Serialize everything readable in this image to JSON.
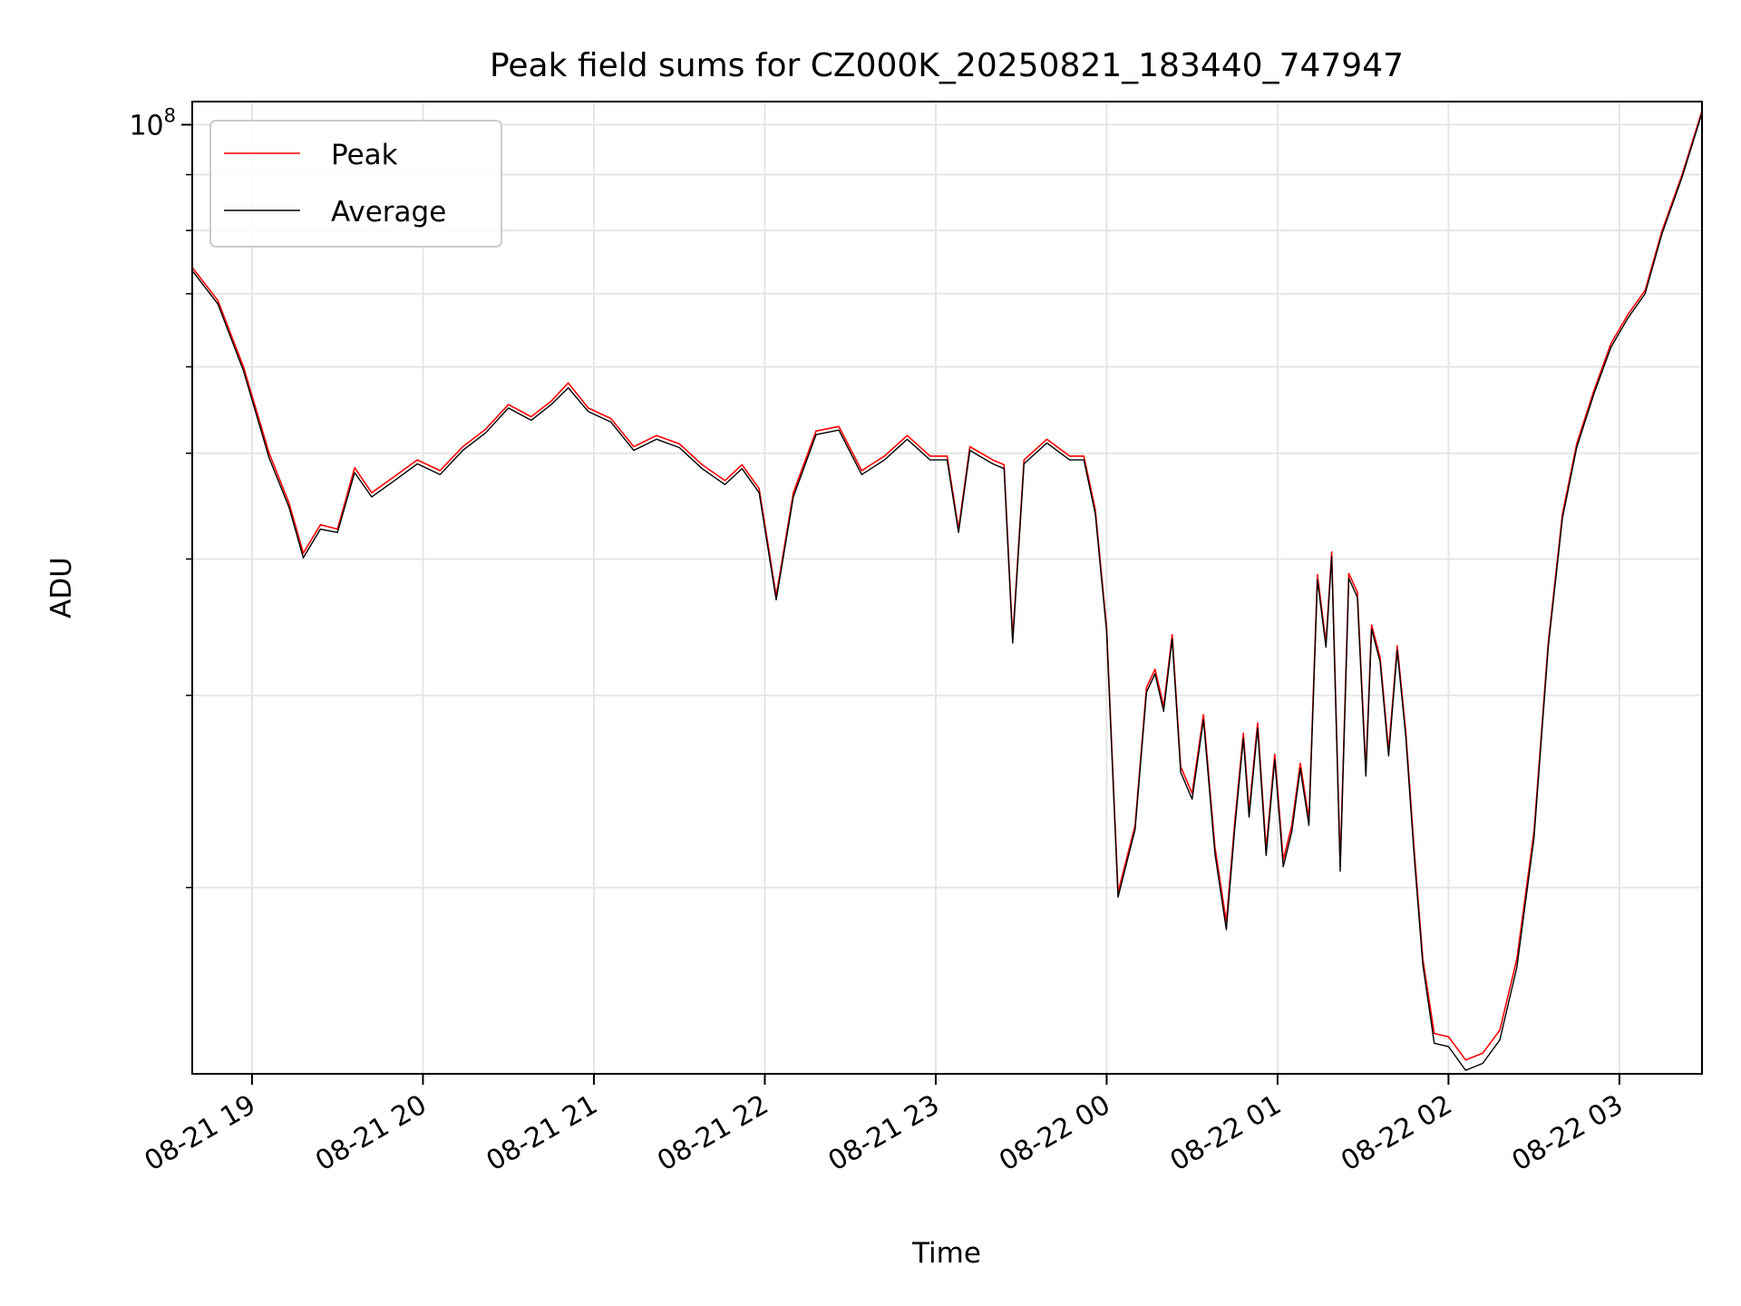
{
  "chart_data": {
    "type": "line",
    "title": "Peak field sums for CZ000K_20250821_183440_747947",
    "xlabel": "Time",
    "ylabel": "ADU",
    "y_scale": "log",
    "x_tick_labels": [
      "08-21 19",
      "08-21 20",
      "08-21 21",
      "08-21 22",
      "08-21 23",
      "08-22 00",
      "08-22 01",
      "08-22 02",
      "08-22 03"
    ],
    "x_ticks": [
      "2025-08-21 19:00",
      "2025-08-21 20:00",
      "2025-08-21 21:00",
      "2025-08-21 22:00",
      "2025-08-21 23:00",
      "2025-08-22 00:00",
      "2025-08-22 01:00",
      "2025-08-22 02:00",
      "2025-08-22 03:00"
    ],
    "xlim": [
      "2025-08-21 18:39",
      "2025-08-22 03:29"
    ],
    "y_major_tick": {
      "value": 100000000,
      "base": "10",
      "exponent": "8"
    },
    "y_minor_ticks": [
      20000000,
      30000000,
      40000000,
      50000000,
      60000000,
      70000000,
      80000000,
      90000000
    ],
    "ylim": [
      13500000,
      105000000
    ],
    "grid": true,
    "legend": "upper-left",
    "series": [
      {
        "name": "Peak",
        "color": "#ff0000",
        "points": [
          [
            "2025-08-21 18:39",
            74000000
          ],
          [
            "2025-08-21 18:48",
            69000000
          ],
          [
            "2025-08-21 18:57",
            60000000
          ],
          [
            "2025-08-21 19:06",
            50000000
          ],
          [
            "2025-08-21 19:13",
            45000000
          ],
          [
            "2025-08-21 19:18",
            40500000
          ],
          [
            "2025-08-21 19:24",
            43000000
          ],
          [
            "2025-08-21 19:30",
            42600000
          ],
          [
            "2025-08-21 19:36",
            48500000
          ],
          [
            "2025-08-21 19:42",
            46000000
          ],
          [
            "2025-08-21 19:50",
            47600000
          ],
          [
            "2025-08-21 19:58",
            49300000
          ],
          [
            "2025-08-21 20:06",
            48200000
          ],
          [
            "2025-08-21 20:14",
            50700000
          ],
          [
            "2025-08-21 20:22",
            52600000
          ],
          [
            "2025-08-21 20:30",
            55400000
          ],
          [
            "2025-08-21 20:38",
            54000000
          ],
          [
            "2025-08-21 20:45",
            55800000
          ],
          [
            "2025-08-21 20:51",
            58000000
          ],
          [
            "2025-08-21 20:58",
            55000000
          ],
          [
            "2025-08-21 21:06",
            53800000
          ],
          [
            "2025-08-21 21:14",
            50700000
          ],
          [
            "2025-08-21 21:22",
            51900000
          ],
          [
            "2025-08-21 21:30",
            51000000
          ],
          [
            "2025-08-21 21:38",
            48800000
          ],
          [
            "2025-08-21 21:46",
            47200000
          ],
          [
            "2025-08-21 21:52",
            48800000
          ],
          [
            "2025-08-21 21:58",
            46400000
          ],
          [
            "2025-08-21 22:04",
            37000000
          ],
          [
            "2025-08-21 22:10",
            46000000
          ],
          [
            "2025-08-21 22:18",
            52400000
          ],
          [
            "2025-08-21 22:26",
            52900000
          ],
          [
            "2025-08-21 22:34",
            48200000
          ],
          [
            "2025-08-21 22:42",
            49700000
          ],
          [
            "2025-08-21 22:50",
            51900000
          ],
          [
            "2025-08-21 22:58",
            49700000
          ],
          [
            "2025-08-21 23:04",
            49700000
          ],
          [
            "2025-08-21 23:08",
            42600000
          ],
          [
            "2025-08-21 23:12",
            50700000
          ],
          [
            "2025-08-21 23:20",
            49300000
          ],
          [
            "2025-08-21 23:24",
            48800000
          ],
          [
            "2025-08-21 23:27",
            33800000
          ],
          [
            "2025-08-21 23:31",
            49300000
          ],
          [
            "2025-08-21 23:39",
            51500000
          ],
          [
            "2025-08-21 23:47",
            49700000
          ],
          [
            "2025-08-21 23:52",
            49700000
          ],
          [
            "2025-08-21 23:56",
            44400000
          ],
          [
            "2025-08-22 00:00",
            34600000
          ],
          [
            "2025-08-22 00:04",
            19800000
          ],
          [
            "2025-08-22 00:10",
            22800000
          ],
          [
            "2025-08-22 00:14",
            30500000
          ],
          [
            "2025-08-22 00:17",
            31700000
          ],
          [
            "2025-08-22 00:20",
            29300000
          ],
          [
            "2025-08-22 00:23",
            34100000
          ],
          [
            "2025-08-22 00:26",
            25800000
          ],
          [
            "2025-08-22 00:30",
            24400000
          ],
          [
            "2025-08-22 00:34",
            28800000
          ],
          [
            "2025-08-22 00:38",
            21800000
          ],
          [
            "2025-08-22 00:42",
            18600000
          ],
          [
            "2025-08-22 00:45",
            23000000
          ],
          [
            "2025-08-22 00:48",
            27700000
          ],
          [
            "2025-08-22 00:50",
            23500000
          ],
          [
            "2025-08-22 00:53",
            28300000
          ],
          [
            "2025-08-22 00:56",
            21700000
          ],
          [
            "2025-08-22 00:59",
            26500000
          ],
          [
            "2025-08-22 01:02",
            21200000
          ],
          [
            "2025-08-22 01:05",
            22800000
          ],
          [
            "2025-08-22 01:08",
            26000000
          ],
          [
            "2025-08-22 01:11",
            23100000
          ],
          [
            "2025-08-22 01:14",
            38700000
          ],
          [
            "2025-08-22 01:17",
            33500000
          ],
          [
            "2025-08-22 01:19",
            40600000
          ],
          [
            "2025-08-22 01:22",
            21000000
          ],
          [
            "2025-08-22 01:25",
            38800000
          ],
          [
            "2025-08-22 01:28",
            37300000
          ],
          [
            "2025-08-22 01:31",
            25600000
          ],
          [
            "2025-08-22 01:33",
            34800000
          ],
          [
            "2025-08-22 01:36",
            32500000
          ],
          [
            "2025-08-22 01:39",
            26700000
          ],
          [
            "2025-08-22 01:42",
            33300000
          ],
          [
            "2025-08-22 01:45",
            27800000
          ],
          [
            "2025-08-22 01:48",
            21600000
          ],
          [
            "2025-08-22 01:51",
            17200000
          ],
          [
            "2025-08-22 01:55",
            14700000
          ],
          [
            "2025-08-22 02:00",
            14600000
          ],
          [
            "2025-08-22 02:06",
            13900000
          ],
          [
            "2025-08-22 02:12",
            14100000
          ],
          [
            "2025-08-22 02:18",
            14800000
          ],
          [
            "2025-08-22 02:24",
            17200000
          ],
          [
            "2025-08-22 02:30",
            22500000
          ],
          [
            "2025-08-22 02:35",
            33500000
          ],
          [
            "2025-08-22 02:40",
            44000000
          ],
          [
            "2025-08-22 02:45",
            51000000
          ],
          [
            "2025-08-22 02:51",
            57000000
          ],
          [
            "2025-08-22 02:57",
            63000000
          ],
          [
            "2025-08-22 03:03",
            67000000
          ],
          [
            "2025-08-22 03:09",
            70500000
          ],
          [
            "2025-08-22 03:15",
            80000000
          ],
          [
            "2025-08-22 03:22",
            90000000
          ],
          [
            "2025-08-22 03:29",
            103000000
          ]
        ]
      },
      {
        "name": "Average",
        "color": "#000000",
        "points": [
          [
            "2025-08-21 18:39",
            73500000
          ],
          [
            "2025-08-21 18:48",
            68500000
          ],
          [
            "2025-08-21 18:57",
            59500000
          ],
          [
            "2025-08-21 19:06",
            49500000
          ],
          [
            "2025-08-21 19:13",
            44600000
          ],
          [
            "2025-08-21 19:18",
            40100000
          ],
          [
            "2025-08-21 19:24",
            42600000
          ],
          [
            "2025-08-21 19:30",
            42300000
          ],
          [
            "2025-08-21 19:36",
            48000000
          ],
          [
            "2025-08-21 19:42",
            45600000
          ],
          [
            "2025-08-21 19:50",
            47200000
          ],
          [
            "2025-08-21 19:58",
            48900000
          ],
          [
            "2025-08-21 20:06",
            47800000
          ],
          [
            "2025-08-21 20:14",
            50300000
          ],
          [
            "2025-08-21 20:22",
            52200000
          ],
          [
            "2025-08-21 20:30",
            55000000
          ],
          [
            "2025-08-21 20:38",
            53600000
          ],
          [
            "2025-08-21 20:45",
            55400000
          ],
          [
            "2025-08-21 20:51",
            57400000
          ],
          [
            "2025-08-21 20:58",
            54600000
          ],
          [
            "2025-08-21 21:06",
            53400000
          ],
          [
            "2025-08-21 21:14",
            50300000
          ],
          [
            "2025-08-21 21:22",
            51500000
          ],
          [
            "2025-08-21 21:30",
            50600000
          ],
          [
            "2025-08-21 21:38",
            48400000
          ],
          [
            "2025-08-21 21:46",
            46800000
          ],
          [
            "2025-08-21 21:52",
            48400000
          ],
          [
            "2025-08-21 21:58",
            46000000
          ],
          [
            "2025-08-21 22:04",
            36700000
          ],
          [
            "2025-08-21 22:10",
            45600000
          ],
          [
            "2025-08-21 22:18",
            52000000
          ],
          [
            "2025-08-21 22:26",
            52500000
          ],
          [
            "2025-08-21 22:34",
            47800000
          ],
          [
            "2025-08-21 22:42",
            49300000
          ],
          [
            "2025-08-21 22:50",
            51500000
          ],
          [
            "2025-08-21 22:58",
            49300000
          ],
          [
            "2025-08-21 23:04",
            49300000
          ],
          [
            "2025-08-21 23:08",
            42300000
          ],
          [
            "2025-08-21 23:12",
            50300000
          ],
          [
            "2025-08-21 23:20",
            48900000
          ],
          [
            "2025-08-21 23:24",
            48400000
          ],
          [
            "2025-08-21 23:27",
            33500000
          ],
          [
            "2025-08-21 23:31",
            48900000
          ],
          [
            "2025-08-21 23:39",
            51100000
          ],
          [
            "2025-08-21 23:47",
            49300000
          ],
          [
            "2025-08-21 23:52",
            49300000
          ],
          [
            "2025-08-21 23:56",
            44000000
          ],
          [
            "2025-08-22 00:00",
            34300000
          ],
          [
            "2025-08-22 00:04",
            19600000
          ],
          [
            "2025-08-22 00:10",
            22600000
          ],
          [
            "2025-08-22 00:14",
            30200000
          ],
          [
            "2025-08-22 00:17",
            31400000
          ],
          [
            "2025-08-22 00:20",
            29000000
          ],
          [
            "2025-08-22 00:23",
            33800000
          ],
          [
            "2025-08-22 00:26",
            25500000
          ],
          [
            "2025-08-22 00:30",
            24100000
          ],
          [
            "2025-08-22 00:34",
            28500000
          ],
          [
            "2025-08-22 00:38",
            21500000
          ],
          [
            "2025-08-22 00:42",
            18300000
          ],
          [
            "2025-08-22 00:45",
            22700000
          ],
          [
            "2025-08-22 00:48",
            27400000
          ],
          [
            "2025-08-22 00:50",
            23200000
          ],
          [
            "2025-08-22 00:53",
            28000000
          ],
          [
            "2025-08-22 00:56",
            21400000
          ],
          [
            "2025-08-22 00:59",
            26200000
          ],
          [
            "2025-08-22 01:02",
            20900000
          ],
          [
            "2025-08-22 01:05",
            22500000
          ],
          [
            "2025-08-22 01:08",
            25700000
          ],
          [
            "2025-08-22 01:11",
            22800000
          ],
          [
            "2025-08-22 01:14",
            38300000
          ],
          [
            "2025-08-22 01:17",
            33200000
          ],
          [
            "2025-08-22 01:19",
            40200000
          ],
          [
            "2025-08-22 01:22",
            20700000
          ],
          [
            "2025-08-22 01:25",
            38400000
          ],
          [
            "2025-08-22 01:28",
            36900000
          ],
          [
            "2025-08-22 01:31",
            25300000
          ],
          [
            "2025-08-22 01:33",
            34500000
          ],
          [
            "2025-08-22 01:36",
            32200000
          ],
          [
            "2025-08-22 01:39",
            26400000
          ],
          [
            "2025-08-22 01:42",
            33000000
          ],
          [
            "2025-08-22 01:45",
            27500000
          ],
          [
            "2025-08-22 01:48",
            21300000
          ],
          [
            "2025-08-22 01:51",
            17000000
          ],
          [
            "2025-08-22 01:55",
            14400000
          ],
          [
            "2025-08-22 02:00",
            14300000
          ],
          [
            "2025-08-22 02:06",
            13600000
          ],
          [
            "2025-08-22 02:12",
            13800000
          ],
          [
            "2025-08-22 02:18",
            14500000
          ],
          [
            "2025-08-22 02:24",
            16900000
          ],
          [
            "2025-08-22 02:30",
            22200000
          ],
          [
            "2025-08-22 02:35",
            33200000
          ],
          [
            "2025-08-22 02:40",
            43600000
          ],
          [
            "2025-08-22 02:45",
            50600000
          ],
          [
            "2025-08-22 02:51",
            56600000
          ],
          [
            "2025-08-22 02:57",
            62500000
          ],
          [
            "2025-08-22 03:03",
            66500000
          ],
          [
            "2025-08-22 03:09",
            70000000
          ],
          [
            "2025-08-22 03:15",
            79500000
          ],
          [
            "2025-08-22 03:22",
            89500000
          ],
          [
            "2025-08-22 03:29",
            102500000
          ]
        ]
      }
    ]
  }
}
